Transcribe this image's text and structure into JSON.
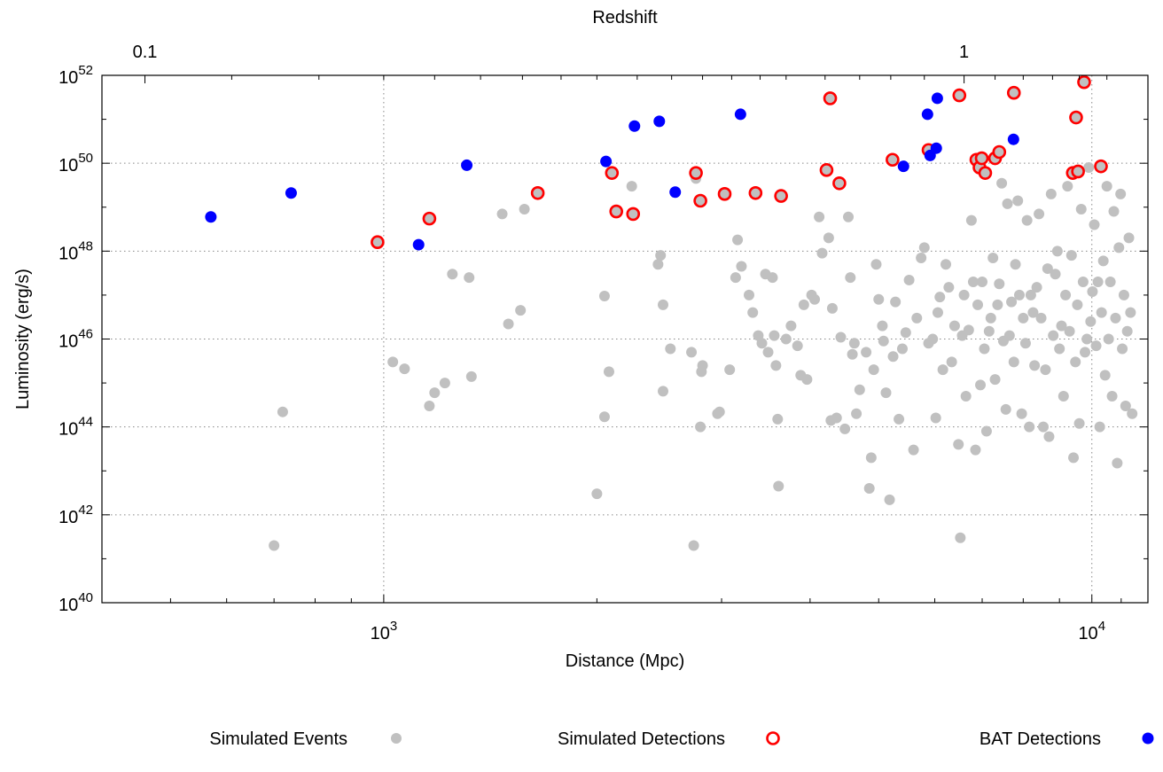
{
  "chart_data": {
    "type": "scatter",
    "xlabel": "Distance (Mpc)",
    "ylabel": "Luminosity (erg/s)",
    "x2label": "Redshift",
    "x_scale": "log",
    "y_scale": "log",
    "xlim": [
      400,
      12000
    ],
    "ylim": [
      1e+40,
      1e+52
    ],
    "x_ticks": [
      {
        "value": 1000,
        "base": "10",
        "exp": "3"
      },
      {
        "value": 10000,
        "base": "10",
        "exp": "4"
      }
    ],
    "y_ticks": [
      {
        "value": 1e+40,
        "base": "10",
        "exp": "40"
      },
      {
        "value": 1e+42,
        "base": "10",
        "exp": "42"
      },
      {
        "value": 1e+44,
        "base": "10",
        "exp": "44"
      },
      {
        "value": 1e+46,
        "base": "10",
        "exp": "46"
      },
      {
        "value": 1e+48,
        "base": "10",
        "exp": "48"
      },
      {
        "value": 1e+50,
        "base": "10",
        "exp": "50"
      },
      {
        "value": 1e+52,
        "base": "10",
        "exp": "52"
      }
    ],
    "top_ticks": [
      {
        "distance": 460,
        "label": "0.1"
      },
      {
        "distance": 6600,
        "label": "1"
      }
    ],
    "grid": true,
    "legend": "bottom",
    "colors": {
      "events": "#c0c0c0",
      "detections": "#ff0000",
      "bat": "#0000ff"
    },
    "series": [
      {
        "name": "Simulated Events",
        "marker": "filled-gray",
        "points": [
          [
            700,
            2e+41
          ],
          [
            720,
            2.2e+44
          ],
          [
            1030,
            3e+45
          ],
          [
            1070,
            2.1e+45
          ],
          [
            1160,
            3e+44
          ],
          [
            1180,
            6e+44
          ],
          [
            1220,
            1e+45
          ],
          [
            1250,
            3e+47
          ],
          [
            1320,
            2.5e+47
          ],
          [
            1330,
            1.4e+45
          ],
          [
            1470,
            7e+48
          ],
          [
            1500,
            2.2e+46
          ],
          [
            1560,
            4.5e+46
          ],
          [
            1580,
            9e+48
          ],
          [
            2000,
            3e+42
          ],
          [
            2050,
            1.7e+44
          ],
          [
            2050,
            9.5e+46
          ],
          [
            2080,
            1.8e+45
          ],
          [
            2240,
            3e+49
          ],
          [
            2440,
            5e+47
          ],
          [
            2460,
            8e+47
          ],
          [
            2480,
            6.5e+44
          ],
          [
            2480,
            6e+46
          ],
          [
            2540,
            6e+45
          ],
          [
            2720,
            5e+45
          ],
          [
            2740,
            2e+41
          ],
          [
            2760,
            4.5e+49
          ],
          [
            2800,
            1e+44
          ],
          [
            2810,
            1.8e+45
          ],
          [
            2820,
            2.5e+45
          ],
          [
            2960,
            2e+44
          ],
          [
            2980,
            2.2e+44
          ],
          [
            3080,
            2e+45
          ],
          [
            3140,
            2.5e+47
          ],
          [
            3160,
            1.8e+48
          ],
          [
            3200,
            4.5e+47
          ],
          [
            3280,
            1e+47
          ],
          [
            3320,
            4e+46
          ],
          [
            3380,
            1.2e+46
          ],
          [
            3420,
            8e+45
          ],
          [
            3460,
            3e+47
          ],
          [
            3490,
            5e+45
          ],
          [
            3540,
            2.5e+47
          ],
          [
            3560,
            1.2e+46
          ],
          [
            3580,
            2.5e+45
          ],
          [
            3600,
            1.5e+44
          ],
          [
            3610,
            4.5e+42
          ],
          [
            3700,
            1e+46
          ],
          [
            3760,
            2e+46
          ],
          [
            3840,
            7e+45
          ],
          [
            3880,
            1.5e+45
          ],
          [
            3920,
            6e+46
          ],
          [
            3960,
            1.2e+45
          ],
          [
            4020,
            1e+47
          ],
          [
            4060,
            8e+46
          ],
          [
            4120,
            6e+48
          ],
          [
            4160,
            9e+47
          ],
          [
            4250,
            2e+48
          ],
          [
            4280,
            1.4e+44
          ],
          [
            4300,
            5e+46
          ],
          [
            4360,
            1.6e+44
          ],
          [
            4420,
            1.1e+46
          ],
          [
            4480,
            9e+43
          ],
          [
            4530,
            6e+48
          ],
          [
            4560,
            2.5e+47
          ],
          [
            4590,
            4.5e+45
          ],
          [
            4620,
            8e+45
          ],
          [
            4650,
            2e+44
          ],
          [
            4700,
            7e+44
          ],
          [
            4800,
            5e+45
          ],
          [
            4850,
            4e+42
          ],
          [
            4880,
            2e+43
          ],
          [
            4920,
            2e+45
          ],
          [
            4960,
            5e+47
          ],
          [
            5000,
            8e+46
          ],
          [
            5060,
            2e+46
          ],
          [
            5080,
            9e+45
          ],
          [
            5120,
            6e+44
          ],
          [
            5180,
            2.2e+42
          ],
          [
            5240,
            4e+45
          ],
          [
            5280,
            7e+46
          ],
          [
            5340,
            1.5e+44
          ],
          [
            5400,
            6e+45
          ],
          [
            5460,
            1.4e+46
          ],
          [
            5520,
            2.2e+47
          ],
          [
            5600,
            3e+43
          ],
          [
            5660,
            3e+46
          ],
          [
            5740,
            7e+47
          ],
          [
            5800,
            1.2e+48
          ],
          [
            5880,
            8e+45
          ],
          [
            5960,
            1e+46
          ],
          [
            6020,
            1.6e+44
          ],
          [
            6060,
            4e+46
          ],
          [
            6100,
            9e+46
          ],
          [
            6160,
            2e+45
          ],
          [
            6220,
            5e+47
          ],
          [
            6280,
            1.5e+47
          ],
          [
            6340,
            3e+45
          ],
          [
            6400,
            2e+46
          ],
          [
            6480,
            4e+43
          ],
          [
            6520,
            3e+41
          ],
          [
            6560,
            1.2e+46
          ],
          [
            6600,
            1e+47
          ],
          [
            6640,
            5e+44
          ],
          [
            6700,
            1.6e+46
          ],
          [
            6760,
            5e+48
          ],
          [
            6800,
            2e+47
          ],
          [
            6850,
            3e+43
          ],
          [
            6900,
            6e+46
          ],
          [
            6960,
            9e+44
          ],
          [
            7000,
            2e+47
          ],
          [
            7050,
            6e+45
          ],
          [
            7100,
            8e+43
          ],
          [
            7160,
            1.5e+46
          ],
          [
            7200,
            3e+46
          ],
          [
            7250,
            7e+47
          ],
          [
            7300,
            1.2e+45
          ],
          [
            7360,
            6e+46
          ],
          [
            7400,
            1.8e+47
          ],
          [
            7460,
            3.5e+49
          ],
          [
            7500,
            9e+45
          ],
          [
            7560,
            2.5e+44
          ],
          [
            7600,
            1.2e+49
          ],
          [
            7650,
            1.2e+46
          ],
          [
            7700,
            7e+46
          ],
          [
            7760,
            3e+45
          ],
          [
            7800,
            5e+47
          ],
          [
            7860,
            1.4e+49
          ],
          [
            7900,
            1e+47
          ],
          [
            7960,
            2e+44
          ],
          [
            8000,
            3e+46
          ],
          [
            8060,
            8e+45
          ],
          [
            8100,
            5e+48
          ],
          [
            8160,
            1e+44
          ],
          [
            8200,
            1e+47
          ],
          [
            8260,
            4e+46
          ],
          [
            8300,
            2.5e+45
          ],
          [
            8360,
            1.5e+47
          ],
          [
            8420,
            7e+48
          ],
          [
            8480,
            3e+46
          ],
          [
            8540,
            1e+44
          ],
          [
            8600,
            2e+45
          ],
          [
            8660,
            4e+47
          ],
          [
            8700,
            6e+43
          ],
          [
            8760,
            2e+49
          ],
          [
            8820,
            1.2e+46
          ],
          [
            8880,
            3e+47
          ],
          [
            8940,
            1e+48
          ],
          [
            9000,
            6e+45
          ],
          [
            9060,
            2e+46
          ],
          [
            9120,
            5e+44
          ],
          [
            9180,
            1e+47
          ],
          [
            9240,
            3e+49
          ],
          [
            9300,
            1.5e+46
          ],
          [
            9360,
            8e+47
          ],
          [
            9420,
            2e+43
          ],
          [
            9480,
            3e+45
          ],
          [
            9540,
            6e+46
          ],
          [
            9600,
            1.2e+44
          ],
          [
            9660,
            9e+48
          ],
          [
            9720,
            2e+47
          ],
          [
            9780,
            5e+45
          ],
          [
            9840,
            1e+46
          ],
          [
            9900,
            8e+49
          ],
          [
            9960,
            2.5e+46
          ],
          [
            10020,
            1.2e+47
          ],
          [
            10080,
            4e+48
          ],
          [
            10140,
            7e+45
          ],
          [
            10200,
            2e+47
          ],
          [
            10260,
            1e+44
          ],
          [
            10320,
            4e+46
          ],
          [
            10380,
            6e+47
          ],
          [
            10440,
            1.5e+45
          ],
          [
            10500,
            3e+49
          ],
          [
            10560,
            1e+46
          ],
          [
            10620,
            2e+47
          ],
          [
            10680,
            5e+44
          ],
          [
            10740,
            8e+48
          ],
          [
            10800,
            3e+46
          ],
          [
            10860,
            1.5e+43
          ],
          [
            10920,
            1.2e+48
          ],
          [
            10980,
            2e+49
          ],
          [
            11040,
            6e+45
          ],
          [
            11100,
            1e+47
          ],
          [
            11160,
            3e+44
          ],
          [
            11220,
            1.5e+46
          ],
          [
            11280,
            2e+48
          ],
          [
            11340,
            4e+46
          ],
          [
            11400,
            2e+44
          ]
        ]
      },
      {
        "name": "Simulated Detections",
        "marker": "open-red",
        "points": [
          [
            980,
            1.6e+48
          ],
          [
            1160,
            5.5e+48
          ],
          [
            1650,
            2.1e+49
          ],
          [
            2100,
            6e+49
          ],
          [
            2130,
            8e+48
          ],
          [
            2250,
            7e+48
          ],
          [
            2760,
            6e+49
          ],
          [
            2800,
            1.4e+49
          ],
          [
            3030,
            2e+49
          ],
          [
            3350,
            2.1e+49
          ],
          [
            3640,
            1.8e+49
          ],
          [
            4220,
            7e+49
          ],
          [
            4270,
            3e+51
          ],
          [
            4400,
            3.5e+49
          ],
          [
            5230,
            1.2e+50
          ],
          [
            5880,
            2e+50
          ],
          [
            6500,
            3.5e+51
          ],
          [
            6870,
            1.2e+50
          ],
          [
            6940,
            8e+49
          ],
          [
            6990,
            1.3e+50
          ],
          [
            7070,
            6e+49
          ],
          [
            7300,
            1.3e+50
          ],
          [
            7400,
            1.8e+50
          ],
          [
            7760,
            4e+51
          ],
          [
            9400,
            6e+49
          ],
          [
            9500,
            1.1e+51
          ],
          [
            9560,
            6.5e+49
          ],
          [
            9750,
            7e+51
          ],
          [
            10300,
            8.5e+49
          ]
        ]
      },
      {
        "name": "BAT Detections",
        "marker": "filled-blue",
        "points": [
          [
            570,
            6e+48
          ],
          [
            740,
            2.1e+49
          ],
          [
            1120,
            1.4e+48
          ],
          [
            1310,
            9e+49
          ],
          [
            2060,
            1.1e+50
          ],
          [
            2260,
            7e+50
          ],
          [
            2450,
            9e+50
          ],
          [
            2580,
            2.2e+49
          ],
          [
            3190,
            1.3e+51
          ],
          [
            5420,
            8.5e+49
          ],
          [
            5860,
            1.3e+51
          ],
          [
            5910,
            1.5e+50
          ],
          [
            6030,
            2.2e+50
          ],
          [
            6050,
            3e+51
          ],
          [
            7750,
            3.5e+50
          ]
        ]
      }
    ]
  }
}
